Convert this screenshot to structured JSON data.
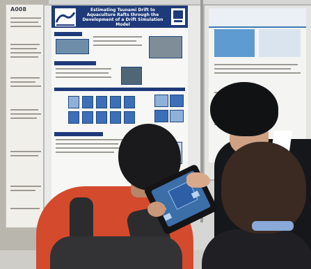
{
  "scene": {
    "booth_code": "A008",
    "main_poster_title": "Estimating Tsunami Drift to Aquaculture Rafts through the Development of a Drift Simulation Model",
    "colors": {
      "poster_title_bar": "#1f3a7a",
      "red_jacket": "#d34a2d",
      "tablet_screen": "#3c6ea8"
    }
  }
}
